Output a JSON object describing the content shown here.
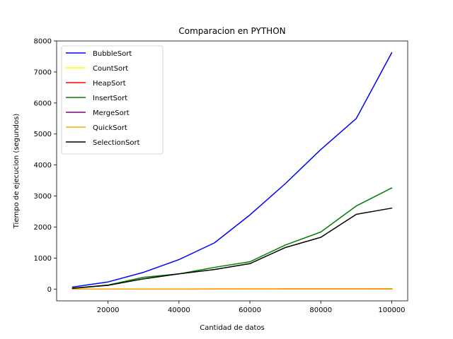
{
  "chart_data": {
    "type": "line",
    "title": "Comparacion en PYTHON",
    "xlabel": "Cantidad de datos",
    "ylabel": "Tiempo de ejecucion (segundos)",
    "x": [
      10000,
      20000,
      30000,
      40000,
      50000,
      60000,
      70000,
      80000,
      90000,
      100000
    ],
    "xlim": [
      5500,
      104500
    ],
    "ylim": [
      -380,
      8000
    ],
    "xticks": [
      20000,
      40000,
      60000,
      80000,
      100000
    ],
    "xtick_labels": [
      "20000",
      "40000",
      "60000",
      "80000",
      "100000"
    ],
    "yticks": [
      0,
      1000,
      2000,
      3000,
      4000,
      5000,
      6000,
      7000,
      8000
    ],
    "ytick_labels": [
      "0",
      "1000",
      "2000",
      "3000",
      "4000",
      "5000",
      "6000",
      "7000",
      "8000"
    ],
    "legend_position": "top-left",
    "grid": false,
    "series": [
      {
        "name": "BubbleSort",
        "color": "#0000ff",
        "values": [
          65,
          230,
          540,
          950,
          1490,
          2390,
          3400,
          4500,
          5500,
          7620
        ]
      },
      {
        "name": "CountSort",
        "color": "#ffff00",
        "values": [
          1,
          2,
          3,
          4,
          5,
          6,
          7,
          8,
          9,
          10
        ]
      },
      {
        "name": "HeapSort",
        "color": "#ff0000",
        "values": [
          1,
          1,
          2,
          2,
          3,
          3,
          4,
          4,
          5,
          5
        ]
      },
      {
        "name": "InsertSort",
        "color": "#008000",
        "values": [
          30,
          130,
          380,
          490,
          700,
          880,
          1420,
          1840,
          2680,
          3260
        ]
      },
      {
        "name": "MergeSort",
        "color": "#800080",
        "values": [
          1,
          1,
          1,
          2,
          2,
          2,
          3,
          3,
          3,
          4
        ]
      },
      {
        "name": "QuickSort",
        "color": "#ffa500",
        "values": [
          0,
          1,
          1,
          1,
          1,
          2,
          2,
          2,
          2,
          3
        ]
      },
      {
        "name": "SelectionSort",
        "color": "#000000",
        "values": [
          25,
          120,
          330,
          490,
          630,
          820,
          1340,
          1670,
          2410,
          2610
        ]
      }
    ]
  }
}
